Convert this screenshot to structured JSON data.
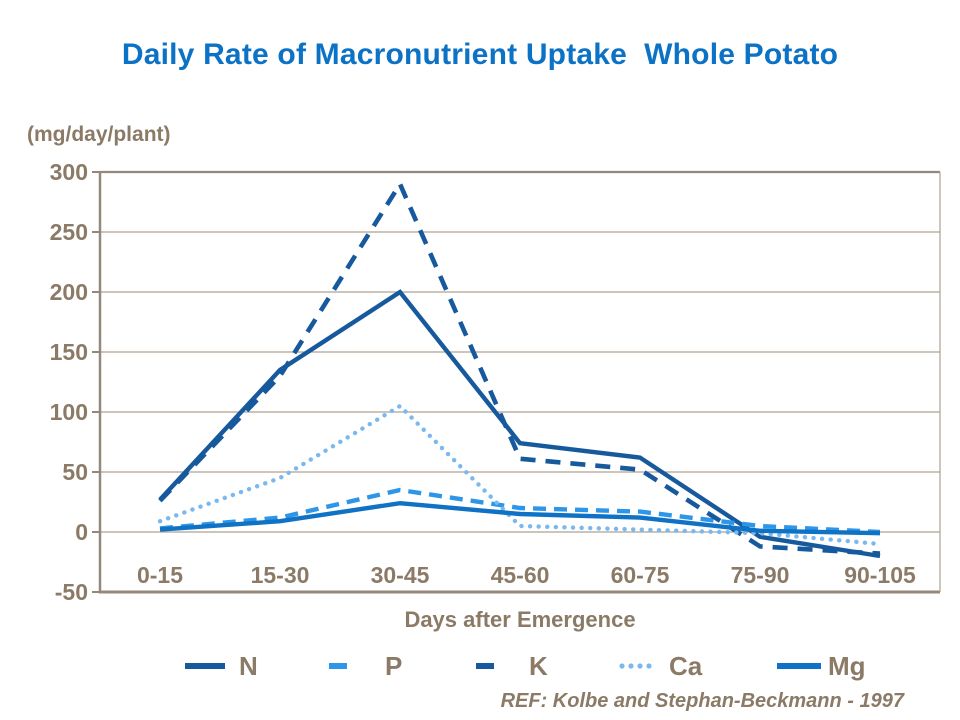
{
  "colors": {
    "title_text": "#0C72C6",
    "axis_text": "#8A7A66",
    "grid_line": "#AFA291",
    "axis_line": "#95887A"
  },
  "chart_data": {
    "type": "line",
    "title": "Daily Rate of Macronutrient Uptake  Whole Potato",
    "ylabel": "(mg/day/plant)",
    "xlabel": "Days after Emergence",
    "annotation": "REF: Kolbe and Stephan-Beckmann - 1997",
    "categories": [
      "0-15",
      "15-30",
      "30-45",
      "45-60",
      "60-75",
      "75-90",
      "90-105"
    ],
    "series": [
      {
        "name": "N",
        "color": "#17599D",
        "style": "solid",
        "values": [
          27,
          135,
          200,
          74,
          62,
          -4,
          -20
        ]
      },
      {
        "name": "P",
        "color": "#2E96E8",
        "style": "dashed",
        "values": [
          3,
          12,
          35,
          20,
          17,
          5,
          0
        ]
      },
      {
        "name": "K",
        "color": "#17599D",
        "style": "dashed",
        "values": [
          26,
          130,
          290,
          61,
          52,
          -12,
          -18
        ]
      },
      {
        "name": "Ca",
        "color": "#7AB9F0",
        "style": "dotted",
        "values": [
          9,
          45,
          105,
          5,
          2,
          -1,
          -10
        ]
      },
      {
        "name": "Mg",
        "color": "#0F72C4",
        "style": "solid",
        "values": [
          2,
          9,
          24,
          15,
          12,
          1,
          -1
        ]
      }
    ],
    "y_ticks": [
      300,
      250,
      200,
      150,
      100,
      50,
      0,
      -50
    ],
    "ylim": [
      -50,
      300
    ],
    "grid": true,
    "legend_position": "bottom"
  }
}
